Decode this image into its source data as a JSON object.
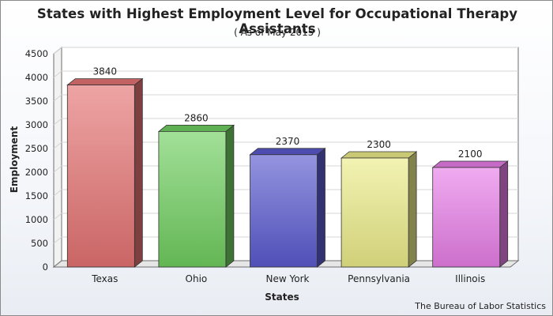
{
  "chart_data": {
    "type": "bar",
    "title": "States with Highest Employment Level for Occupational Therapy Assistants",
    "subtitle": "( As of May 2015 )",
    "xlabel": "States",
    "ylabel": "Employment",
    "categories": [
      "Texas",
      "Ohio",
      "New York",
      "Pennsylvania",
      "Illinois"
    ],
    "values": [
      3840,
      2860,
      2370,
      2300,
      2100
    ],
    "data_labels": [
      "3840",
      "2860",
      "2370",
      "2300",
      "2100"
    ],
    "ylim": [
      0,
      4500
    ],
    "yticks": [
      0,
      500,
      1000,
      1500,
      2000,
      2500,
      3000,
      3500,
      4000,
      4500
    ],
    "grid": true,
    "style": "3d-columns",
    "colors": [
      "#e57373",
      "#70cf60",
      "#5a5ad0",
      "#ecec8a",
      "#e87ee8"
    ],
    "source": "The Bureau of Labor Statistics"
  }
}
